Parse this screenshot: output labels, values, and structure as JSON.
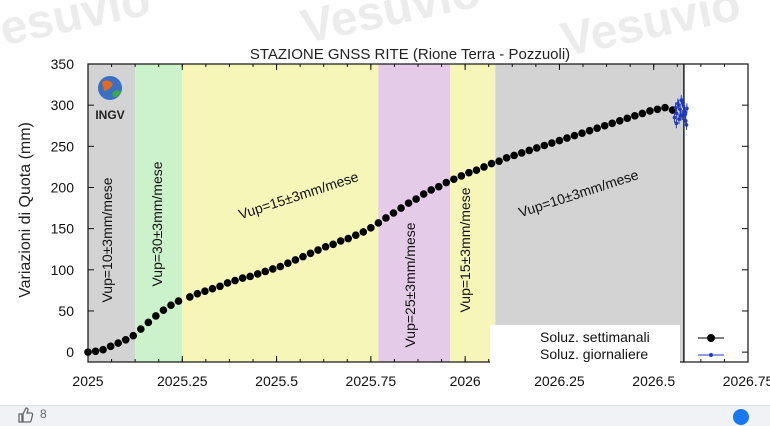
{
  "watermark_text": "Vesuvio",
  "footer": {
    "like_count": "8"
  },
  "chart_data": {
    "type": "scatter",
    "title": "STAZIONE GNSS RITE (Rione Terra - Pozzuoli)",
    "xlabel": "",
    "ylabel": "Variazioni di Quota (mm)",
    "xlim": [
      2025,
      2026.75
    ],
    "ylim": [
      -12,
      350
    ],
    "xticks": [
      "2025",
      "2025.25",
      "2025.5",
      "2025.75",
      "2026",
      "2026.25",
      "2026.5",
      "2026.75"
    ],
    "yticks": [
      "0",
      "50",
      "100",
      "150",
      "200",
      "250",
      "300",
      "350"
    ],
    "logo_text": "INGV",
    "bands": [
      {
        "x0": 2025.0,
        "x1": 2025.125,
        "color": "#d3d3d3",
        "label": "Vup=10±3mm/mese"
      },
      {
        "x0": 2025.125,
        "x1": 2025.25,
        "color": "#ccf2cc",
        "label": "Vup=30±3mm/mese"
      },
      {
        "x0": 2025.25,
        "x1": 2025.77,
        "color": "#f6f6b8",
        "label": "Vup=15±3mm/mese"
      },
      {
        "x0": 2025.77,
        "x1": 2025.96,
        "color": "#e4cce8",
        "label": "Vup=25±3mm/mese"
      },
      {
        "x0": 2025.96,
        "x1": 2026.08,
        "color": "#f6f6b8",
        "label": "Vup=15±3mm/mese"
      },
      {
        "x0": 2026.08,
        "x1": 2026.58,
        "color": "#d3d3d3",
        "label": "Vup=10±3mm/mese"
      }
    ],
    "series": [
      {
        "name": "Soluz. settimanali",
        "color": "#000000",
        "points": [
          [
            2025.0,
            0
          ],
          [
            2025.02,
            1
          ],
          [
            2025.04,
            3
          ],
          [
            2025.06,
            7
          ],
          [
            2025.08,
            11
          ],
          [
            2025.1,
            15
          ],
          [
            2025.12,
            20
          ],
          [
            2025.14,
            28
          ],
          [
            2025.16,
            36
          ],
          [
            2025.18,
            44
          ],
          [
            2025.2,
            51
          ],
          [
            2025.22,
            57
          ],
          [
            2025.24,
            62
          ],
          [
            2025.27,
            67
          ],
          [
            2025.29,
            71
          ],
          [
            2025.31,
            74
          ],
          [
            2025.33,
            77
          ],
          [
            2025.35,
            80
          ],
          [
            2025.37,
            84
          ],
          [
            2025.39,
            87
          ],
          [
            2025.41,
            90
          ],
          [
            2025.43,
            92
          ],
          [
            2025.45,
            95
          ],
          [
            2025.47,
            98
          ],
          [
            2025.49,
            101
          ],
          [
            2025.51,
            104
          ],
          [
            2025.53,
            108
          ],
          [
            2025.55,
            112
          ],
          [
            2025.57,
            116
          ],
          [
            2025.59,
            120
          ],
          [
            2025.61,
            124
          ],
          [
            2025.63,
            128
          ],
          [
            2025.65,
            131
          ],
          [
            2025.67,
            135
          ],
          [
            2025.69,
            138
          ],
          [
            2025.71,
            142
          ],
          [
            2025.73,
            146
          ],
          [
            2025.75,
            151
          ],
          [
            2025.77,
            157
          ],
          [
            2025.79,
            163
          ],
          [
            2025.81,
            169
          ],
          [
            2025.83,
            175
          ],
          [
            2025.85,
            181
          ],
          [
            2025.87,
            186
          ],
          [
            2025.89,
            192
          ],
          [
            2025.91,
            197
          ],
          [
            2025.93,
            201
          ],
          [
            2025.95,
            206
          ],
          [
            2025.97,
            210
          ],
          [
            2025.99,
            214
          ],
          [
            2026.01,
            218
          ],
          [
            2026.03,
            221
          ],
          [
            2026.05,
            225
          ],
          [
            2026.07,
            229
          ],
          [
            2026.09,
            232
          ],
          [
            2026.11,
            236
          ],
          [
            2026.13,
            239
          ],
          [
            2026.15,
            242
          ],
          [
            2026.17,
            245
          ],
          [
            2026.19,
            248
          ],
          [
            2026.21,
            251
          ],
          [
            2026.23,
            254
          ],
          [
            2026.25,
            257
          ],
          [
            2026.27,
            260
          ],
          [
            2026.29,
            263
          ],
          [
            2026.31,
            266
          ],
          [
            2026.33,
            269
          ],
          [
            2026.35,
            272
          ],
          [
            2026.37,
            275
          ],
          [
            2026.39,
            278
          ],
          [
            2026.41,
            281
          ],
          [
            2026.43,
            284
          ],
          [
            2026.45,
            287
          ],
          [
            2026.47,
            290
          ],
          [
            2026.49,
            293
          ],
          [
            2026.51,
            295
          ],
          [
            2026.53,
            297
          ],
          [
            2026.55,
            294
          ]
        ]
      },
      {
        "name": "Soluz. giornaliere",
        "color": "#1f3bbf",
        "points": [
          [
            2026.555,
            285
          ],
          [
            2026.558,
            297
          ],
          [
            2026.561,
            290
          ],
          [
            2026.564,
            302
          ],
          [
            2026.567,
            283
          ],
          [
            2026.57,
            295
          ],
          [
            2026.573,
            306
          ],
          [
            2026.576,
            288
          ],
          [
            2026.579,
            299
          ],
          [
            2026.582,
            292
          ],
          [
            2026.585,
            281
          ],
          [
            2026.588,
            296
          ],
          [
            2026.56,
            278
          ],
          [
            2026.566,
            300
          ],
          [
            2026.572,
            287
          ],
          [
            2026.578,
            303
          ],
          [
            2026.584,
            289
          ],
          [
            2026.587,
            276
          ]
        ]
      }
    ],
    "legend": "bottom-right"
  }
}
